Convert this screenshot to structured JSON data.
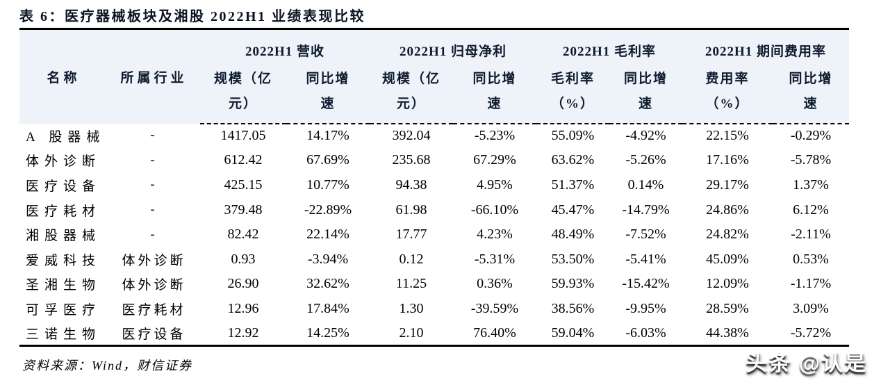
{
  "title": "表 6：医疗器械板块及湘股 2022H1 业绩表现比较",
  "footer": {
    "source": "资料来源：Wind，财信证券"
  },
  "watermark": {
    "text": "头条 @认是"
  },
  "colors": {
    "header_bg": "#edf3f9",
    "heading_text": "#0e1a2e",
    "border": "#000000",
    "watermark_text": "#ffffff"
  },
  "table": {
    "row_headers": [
      {
        "label": "名称"
      },
      {
        "label": "所属行业"
      }
    ],
    "groups": [
      {
        "label": "2022H1 营收",
        "subs": [
          [
            "规模（亿",
            "元）"
          ],
          [
            "同比增",
            "速"
          ]
        ]
      },
      {
        "label": "2022H1 归母净利",
        "subs": [
          [
            "规模（亿",
            "元）"
          ],
          [
            "同比增",
            "速"
          ]
        ]
      },
      {
        "label": "2022H1 毛利率",
        "subs": [
          [
            "毛利率",
            "（%）"
          ],
          [
            "同比增",
            "速"
          ]
        ]
      },
      {
        "label": "2022H1 期间费用率",
        "subs": [
          [
            "费用率",
            "（%）"
          ],
          [
            "同比增",
            "速"
          ]
        ]
      }
    ],
    "rows": [
      {
        "name": "A 股器械",
        "industry": "-",
        "values": [
          "1417.05",
          "14.17%",
          "392.04",
          "-5.23%",
          "55.09%",
          "-4.92%",
          "22.15%",
          "-0.29%"
        ]
      },
      {
        "name": "体外诊断",
        "industry": "-",
        "values": [
          "612.42",
          "67.69%",
          "235.68",
          "67.29%",
          "63.62%",
          "-5.26%",
          "17.16%",
          "-5.78%"
        ]
      },
      {
        "name": "医疗设备",
        "industry": "-",
        "values": [
          "425.15",
          "10.77%",
          "94.38",
          "4.95%",
          "51.37%",
          "0.14%",
          "29.17%",
          "1.37%"
        ]
      },
      {
        "name": "医疗耗材",
        "industry": "-",
        "values": [
          "379.48",
          "-22.89%",
          "61.98",
          "-66.10%",
          "45.47%",
          "-14.79%",
          "24.86%",
          "6.12%"
        ]
      },
      {
        "name": "湘股器械",
        "industry": "-",
        "values": [
          "82.42",
          "22.14%",
          "17.77",
          "4.23%",
          "48.49%",
          "-7.52%",
          "24.82%",
          "-2.11%"
        ]
      },
      {
        "name": "爱威科技",
        "industry": "体外诊断",
        "values": [
          "0.93",
          "-3.94%",
          "0.12",
          "-5.31%",
          "53.50%",
          "-5.41%",
          "45.09%",
          "0.53%"
        ]
      },
      {
        "name": "圣湘生物",
        "industry": "体外诊断",
        "values": [
          "26.90",
          "32.62%",
          "11.25",
          "0.36%",
          "59.93%",
          "-15.42%",
          "12.09%",
          "-1.17%"
        ]
      },
      {
        "name": "可孚医疗",
        "industry": "医疗耗材",
        "values": [
          "12.96",
          "17.84%",
          "1.30",
          "-39.59%",
          "38.56%",
          "-9.95%",
          "28.59%",
          "3.09%"
        ]
      },
      {
        "name": "三诺生物",
        "industry": "医疗设备",
        "values": [
          "12.92",
          "14.25%",
          "2.10",
          "76.40%",
          "59.04%",
          "-6.03%",
          "44.38%",
          "-5.72%"
        ]
      }
    ]
  }
}
